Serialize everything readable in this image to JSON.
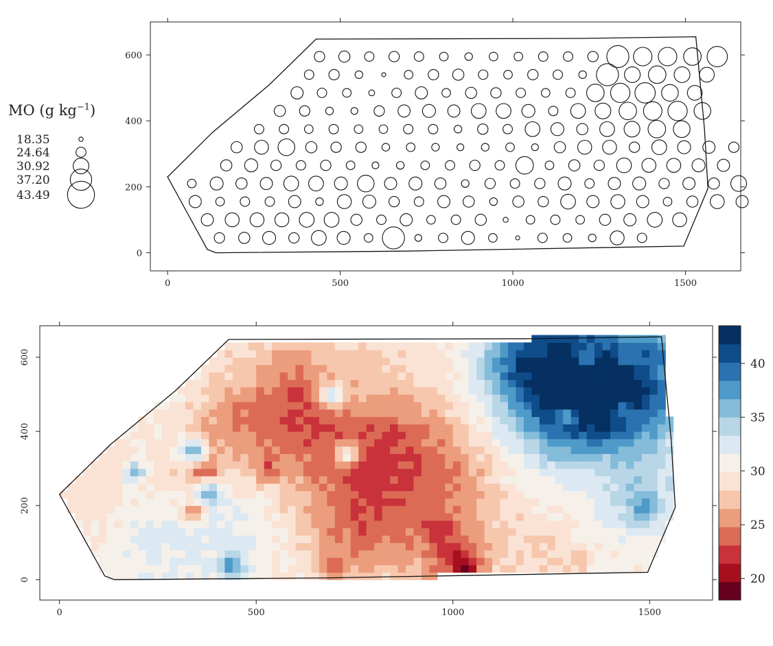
{
  "chart_data": [
    {
      "type": "scatter",
      "kind": "bubble",
      "title": "",
      "xlabel": "",
      "ylabel": "",
      "xlim": [
        -50,
        1660
      ],
      "ylim": [
        -55,
        700
      ],
      "x_ticks": [
        0,
        500,
        1000,
        1500
      ],
      "y_ticks": [
        0,
        200,
        400,
        600
      ],
      "x_tick_labels": [
        "0",
        "500",
        "1000",
        "1500"
      ],
      "y_tick_labels": [
        "0",
        "200",
        "400",
        "600"
      ],
      "grid": false,
      "legend_position": "left",
      "legend": {
        "title_main": "MO (g kg",
        "title_sup": "−1",
        "title_close": ")",
        "labels": [
          "18.35",
          "24.64",
          "30.92",
          "37.20",
          "43.49"
        ],
        "values": [
          18.35,
          24.64,
          30.92,
          37.2,
          43.49
        ]
      },
      "boundary": [
        [
          0,
          230
        ],
        [
          130,
          365
        ],
        [
          295,
          510
        ],
        [
          430,
          648
        ],
        [
          1200,
          650
        ],
        [
          1530,
          655
        ],
        [
          1555,
          375
        ],
        [
          1565,
          195
        ],
        [
          1495,
          20
        ],
        [
          690,
          5
        ],
        [
          140,
          0
        ],
        [
          115,
          10
        ]
      ],
      "grid_x0": 70,
      "grid_dx": 72,
      "grid_y0": 45,
      "grid_dy": 55,
      "rows": [
        {
          "y": 45,
          "x0": 150,
          "dx": 72,
          "values": [
            25,
            26,
            28,
            25,
            30,
            28,
            23,
            38,
            21,
            24,
            28,
            23,
            18,
            24,
            23,
            22,
            29,
            24
          ]
        },
        {
          "y": 100,
          "x0": 115,
          "dx": 72,
          "values": [
            27,
            29,
            29,
            29,
            30,
            30,
            26,
            24,
            27,
            23,
            24,
            26,
            19,
            23,
            24,
            23,
            26,
            27,
            30,
            29
          ]
        },
        {
          "y": 155,
          "x0": 80,
          "dx": 72,
          "values": [
            27,
            23,
            24,
            24,
            27,
            22,
            29,
            28,
            25,
            24,
            27,
            26,
            22,
            26,
            25,
            30,
            27,
            29,
            27,
            23,
            26,
            29,
            27
          ]
        },
        {
          "y": 210,
          "x0": 70,
          "dx": 72,
          "values": [
            23,
            28,
            26,
            27,
            30,
            30,
            28,
            32,
            27,
            28,
            26,
            22,
            25,
            24,
            25,
            28,
            24,
            27,
            28,
            25,
            27,
            26,
            31
          ]
        },
        {
          "y": 265,
          "x0": 170,
          "dx": 72,
          "values": [
            26,
            28,
            25,
            24,
            25,
            23,
            21,
            22,
            23,
            24,
            25,
            24,
            33,
            23,
            26,
            25,
            30,
            29,
            29,
            28,
            27
          ]
        },
        {
          "y": 320,
          "x0": 200,
          "dx": 72,
          "values": [
            26,
            29,
            32,
            26,
            25,
            25,
            22,
            23,
            22,
            21,
            22,
            23,
            21,
            26,
            29,
            29,
            25,
            30,
            28,
            27,
            25
          ]
        },
        {
          "y": 375,
          "x0": 265,
          "dx": 72,
          "values": [
            24,
            24,
            23,
            24,
            23,
            23,
            24,
            24,
            22,
            25,
            24,
            30,
            28,
            26,
            30,
            31,
            33,
            32
          ]
        },
        {
          "y": 430,
          "x0": 325,
          "dx": 72,
          "values": [
            26,
            25,
            22,
            21,
            25,
            27,
            28,
            27,
            30,
            30,
            28,
            24,
            30,
            31,
            33,
            34,
            35,
            32
          ]
        },
        {
          "y": 485,
          "x0": 375,
          "dx": 72,
          "values": [
            27,
            24,
            23,
            20,
            24,
            27,
            23,
            26,
            25,
            24,
            23,
            24,
            33,
            35,
            36,
            32,
            30
          ]
        },
        {
          "y": 540,
          "x0": 410,
          "dx": 72,
          "values": [
            24,
            25,
            22,
            18,
            23,
            25,
            26,
            24,
            23,
            25,
            24,
            22,
            38,
            31,
            33,
            31,
            30
          ]
        },
        {
          "y": 595,
          "x0": 440,
          "dx": 72,
          "values": [
            25,
            26,
            24,
            25,
            24,
            23,
            22,
            23,
            23,
            24,
            24,
            25,
            38,
            34,
            34,
            33,
            36
          ]
        }
      ]
    },
    {
      "type": "heatmap",
      "title": "",
      "xlabel": "",
      "ylabel": "",
      "xlim": [
        -50,
        1660
      ],
      "ylim": [
        -55,
        685
      ],
      "x_ticks": [
        0,
        500,
        1000,
        1500
      ],
      "y_ticks": [
        0,
        200,
        400,
        600
      ],
      "x_tick_labels": [
        "0",
        "500",
        "1000",
        "1500"
      ],
      "y_tick_labels": [
        "0",
        "200",
        "400",
        "600"
      ],
      "grid": false,
      "colorbar": {
        "range": [
          18,
          43.5
        ],
        "ticks": [
          20,
          25,
          30,
          35,
          40
        ],
        "tick_labels": [
          "20",
          "25",
          "30",
          "35",
          "40"
        ],
        "colors": [
          "#67001f",
          "#a50f1e",
          "#c9323a",
          "#dc6b56",
          "#eb9d7d",
          "#f6c7ad",
          "#fae3d4",
          "#f6f0ea",
          "#dde9f2",
          "#b9d6e7",
          "#84bcda",
          "#4e9bc9",
          "#2a72b0",
          "#0f4c8a",
          "#053061"
        ]
      },
      "cell_size": 20,
      "base_value": 30,
      "boundary": [
        [
          0,
          230
        ],
        [
          130,
          365
        ],
        [
          295,
          510
        ],
        [
          430,
          648
        ],
        [
          1200,
          650
        ],
        [
          1530,
          655
        ],
        [
          1555,
          375
        ],
        [
          1565,
          195
        ],
        [
          1495,
          20
        ],
        [
          690,
          5
        ],
        [
          140,
          0
        ],
        [
          115,
          10
        ]
      ],
      "features": [
        {
          "x": 250,
          "y": 150,
          "r": 130,
          "d": 1.7
        },
        {
          "x": 440,
          "y": 125,
          "r": 120,
          "d": 1.5
        },
        {
          "x": 130,
          "y": 270,
          "r": 90,
          "d": -1.3
        },
        {
          "x": 80,
          "y": 220,
          "r": 80,
          "d": -0.8
        },
        {
          "x": 280,
          "y": 280,
          "r": 60,
          "d": -1.3
        },
        {
          "x": 330,
          "y": 240,
          "r": 50,
          "d": -1.1
        },
        {
          "x": 450,
          "y": 360,
          "r": 55,
          "d": -0.6
        },
        {
          "x": 400,
          "y": 330,
          "r": 60,
          "d": -1.4
        },
        {
          "x": 380,
          "y": 400,
          "r": 60,
          "d": -1.8
        },
        {
          "x": 540,
          "y": 350,
          "r": 80,
          "d": -1.6
        },
        {
          "x": 560,
          "y": 520,
          "r": 120,
          "d": -2.6
        },
        {
          "x": 470,
          "y": 460,
          "r": 60,
          "d": -2.2
        },
        {
          "x": 620,
          "y": 430,
          "r": 80,
          "d": -3.0
        },
        {
          "x": 600,
          "y": 560,
          "r": 50,
          "d": -1.8
        },
        {
          "x": 760,
          "y": 300,
          "r": 120,
          "d": -3.6
        },
        {
          "x": 820,
          "y": 200,
          "r": 130,
          "d": -3.0
        },
        {
          "x": 880,
          "y": 380,
          "r": 100,
          "d": -2.8
        },
        {
          "x": 690,
          "y": 130,
          "r": 90,
          "d": -1.6
        },
        {
          "x": 760,
          "y": 80,
          "r": 60,
          "d": -1.5
        },
        {
          "x": 850,
          "y": 560,
          "r": 180,
          "d": -1.2
        },
        {
          "x": 1000,
          "y": 120,
          "r": 110,
          "d": -3.6
        },
        {
          "x": 1010,
          "y": 50,
          "r": 50,
          "d": -3.0
        },
        {
          "x": 1030,
          "y": 280,
          "r": 60,
          "d": -1.4
        },
        {
          "x": 1060,
          "y": 380,
          "r": 90,
          "d": -1.3
        },
        {
          "x": 1240,
          "y": 60,
          "r": 60,
          "d": -1.8
        },
        {
          "x": 1310,
          "y": 230,
          "r": 80,
          "d": -1.0
        },
        {
          "x": 1200,
          "y": 380,
          "r": 110,
          "d": 1.0
        },
        {
          "x": 1430,
          "y": 280,
          "r": 120,
          "d": 2.0
        },
        {
          "x": 1480,
          "y": 210,
          "r": 70,
          "d": 2.5
        },
        {
          "x": 1250,
          "y": 560,
          "r": 140,
          "d": 5.8
        },
        {
          "x": 1200,
          "y": 600,
          "r": 80,
          "d": 4.8
        },
        {
          "x": 1290,
          "y": 480,
          "r": 80,
          "d": 4.0
        },
        {
          "x": 1380,
          "y": 560,
          "r": 140,
          "d": 5.2
        },
        {
          "x": 1480,
          "y": 560,
          "r": 90,
          "d": 4.6
        },
        {
          "x": 1470,
          "y": 450,
          "r": 70,
          "d": 3.6
        },
        {
          "x": 1340,
          "y": 440,
          "r": 70,
          "d": 3.0
        }
      ],
      "spots": [
        {
          "x": 1030,
          "y": 30,
          "v": 19.0
        },
        {
          "x": 1010,
          "y": 60,
          "v": 20.5
        },
        {
          "x": 970,
          "y": 130,
          "v": 21.5
        },
        {
          "x": 790,
          "y": 240,
          "v": 22.5
        },
        {
          "x": 850,
          "y": 310,
          "v": 23.0
        },
        {
          "x": 820,
          "y": 370,
          "v": 22.5
        },
        {
          "x": 590,
          "y": 430,
          "v": 22.5
        },
        {
          "x": 370,
          "y": 300,
          "v": 22.5
        },
        {
          "x": 530,
          "y": 300,
          "v": 22.8
        },
        {
          "x": 700,
          "y": 40,
          "v": 23.5
        },
        {
          "x": 1210,
          "y": 620,
          "v": 40.5
        },
        {
          "x": 1180,
          "y": 560,
          "v": 42.0
        },
        {
          "x": 1340,
          "y": 600,
          "v": 38.5
        },
        {
          "x": 1500,
          "y": 610,
          "v": 41.0
        },
        {
          "x": 1450,
          "y": 610,
          "v": 38.0
        },
        {
          "x": 1440,
          "y": 450,
          "v": 37.5
        },
        {
          "x": 1480,
          "y": 200,
          "v": 37.0
        },
        {
          "x": 1480,
          "y": 180,
          "v": 36.5
        },
        {
          "x": 1290,
          "y": 440,
          "v": 37.0
        },
        {
          "x": 440,
          "y": 40,
          "v": 38.5
        },
        {
          "x": 340,
          "y": 350,
          "v": 37.0
        },
        {
          "x": 190,
          "y": 290,
          "v": 35.5
        },
        {
          "x": 380,
          "y": 230,
          "v": 36.5
        },
        {
          "x": 690,
          "y": 500,
          "v": 33.0
        },
        {
          "x": 1320,
          "y": 60,
          "v": 27.0
        },
        {
          "x": 340,
          "y": 180,
          "v": 25.5
        },
        {
          "x": 730,
          "y": 340,
          "v": 30.5
        }
      ]
    }
  ]
}
